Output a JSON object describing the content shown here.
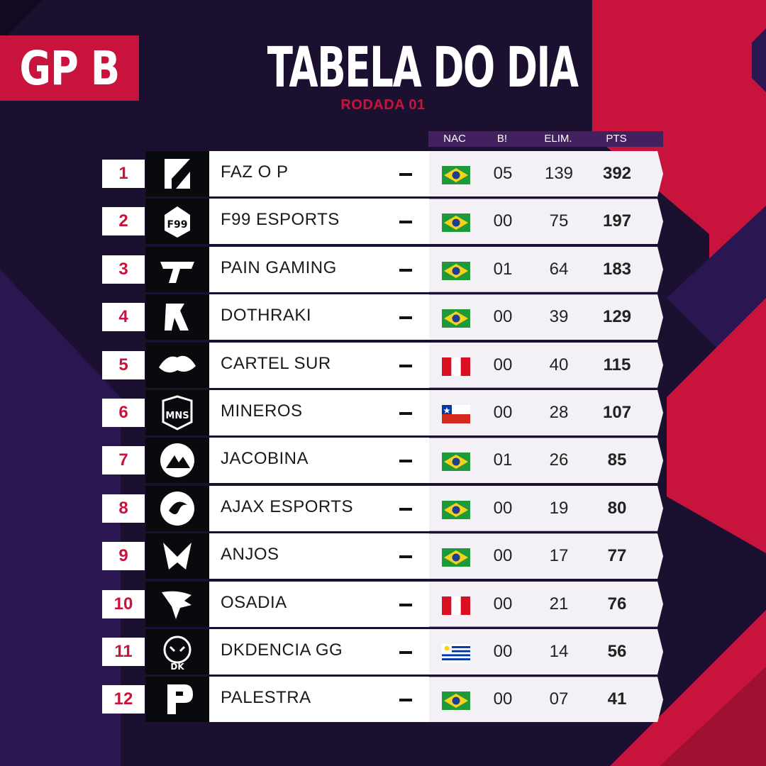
{
  "group_label": "GP B",
  "title": "TABELA DO DIA",
  "subtitle": "RODADA 01",
  "headers": {
    "nac": "NAC",
    "b": "B!",
    "elim": "ELIM.",
    "pts": "PTS"
  },
  "colors": {
    "accent": "#c8143c",
    "background": "#1c1030",
    "header": "#43205e"
  },
  "teams": [
    {
      "rank": "1",
      "name": "FAZ O P",
      "trend": "—",
      "flag": "brazil",
      "b": "05",
      "elim": "139",
      "pts": "392",
      "logo": "faz-o-p-logo"
    },
    {
      "rank": "2",
      "name": "F99 ESPORTS",
      "trend": "—",
      "flag": "brazil",
      "b": "00",
      "elim": "75",
      "pts": "197",
      "logo": "f99-esports-logo"
    },
    {
      "rank": "3",
      "name": "PAIN GAMING",
      "trend": "—",
      "flag": "brazil",
      "b": "01",
      "elim": "64",
      "pts": "183",
      "logo": "pain-gaming-logo"
    },
    {
      "rank": "4",
      "name": "DOTHRAKI",
      "trend": "—",
      "flag": "brazil",
      "b": "00",
      "elim": "39",
      "pts": "129",
      "logo": "dothraki-logo"
    },
    {
      "rank": "5",
      "name": "CARTEL SUR",
      "trend": "—",
      "flag": "peru",
      "b": "00",
      "elim": "40",
      "pts": "115",
      "logo": "cartel-sur-logo"
    },
    {
      "rank": "6",
      "name": "MINEROS",
      "trend": "—",
      "flag": "chile",
      "b": "00",
      "elim": "28",
      "pts": "107",
      "logo": "mineros-logo"
    },
    {
      "rank": "7",
      "name": "JACOBINA",
      "trend": "—",
      "flag": "brazil",
      "b": "01",
      "elim": "26",
      "pts": "85",
      "logo": "jacobina-logo"
    },
    {
      "rank": "8",
      "name": "AJAX ESPORTS",
      "trend": "—",
      "flag": "brazil",
      "b": "00",
      "elim": "19",
      "pts": "80",
      "logo": "ajax-esports-logo"
    },
    {
      "rank": "9",
      "name": "ANJOS",
      "trend": "—",
      "flag": "brazil",
      "b": "00",
      "elim": "17",
      "pts": "77",
      "logo": "anjos-logo"
    },
    {
      "rank": "10",
      "name": "OSADIA",
      "trend": "—",
      "flag": "peru",
      "b": "00",
      "elim": "21",
      "pts": "76",
      "logo": "osadia-logo"
    },
    {
      "rank": "11",
      "name": "DKDENCIA GG",
      "trend": "—",
      "flag": "uruguay",
      "b": "00",
      "elim": "14",
      "pts": "56",
      "logo": "dkdencia-gg-logo"
    },
    {
      "rank": "12",
      "name": "PALESTRA",
      "trend": "—",
      "flag": "brazil",
      "b": "00",
      "elim": "07",
      "pts": "41",
      "logo": "palestra-logo"
    }
  ]
}
